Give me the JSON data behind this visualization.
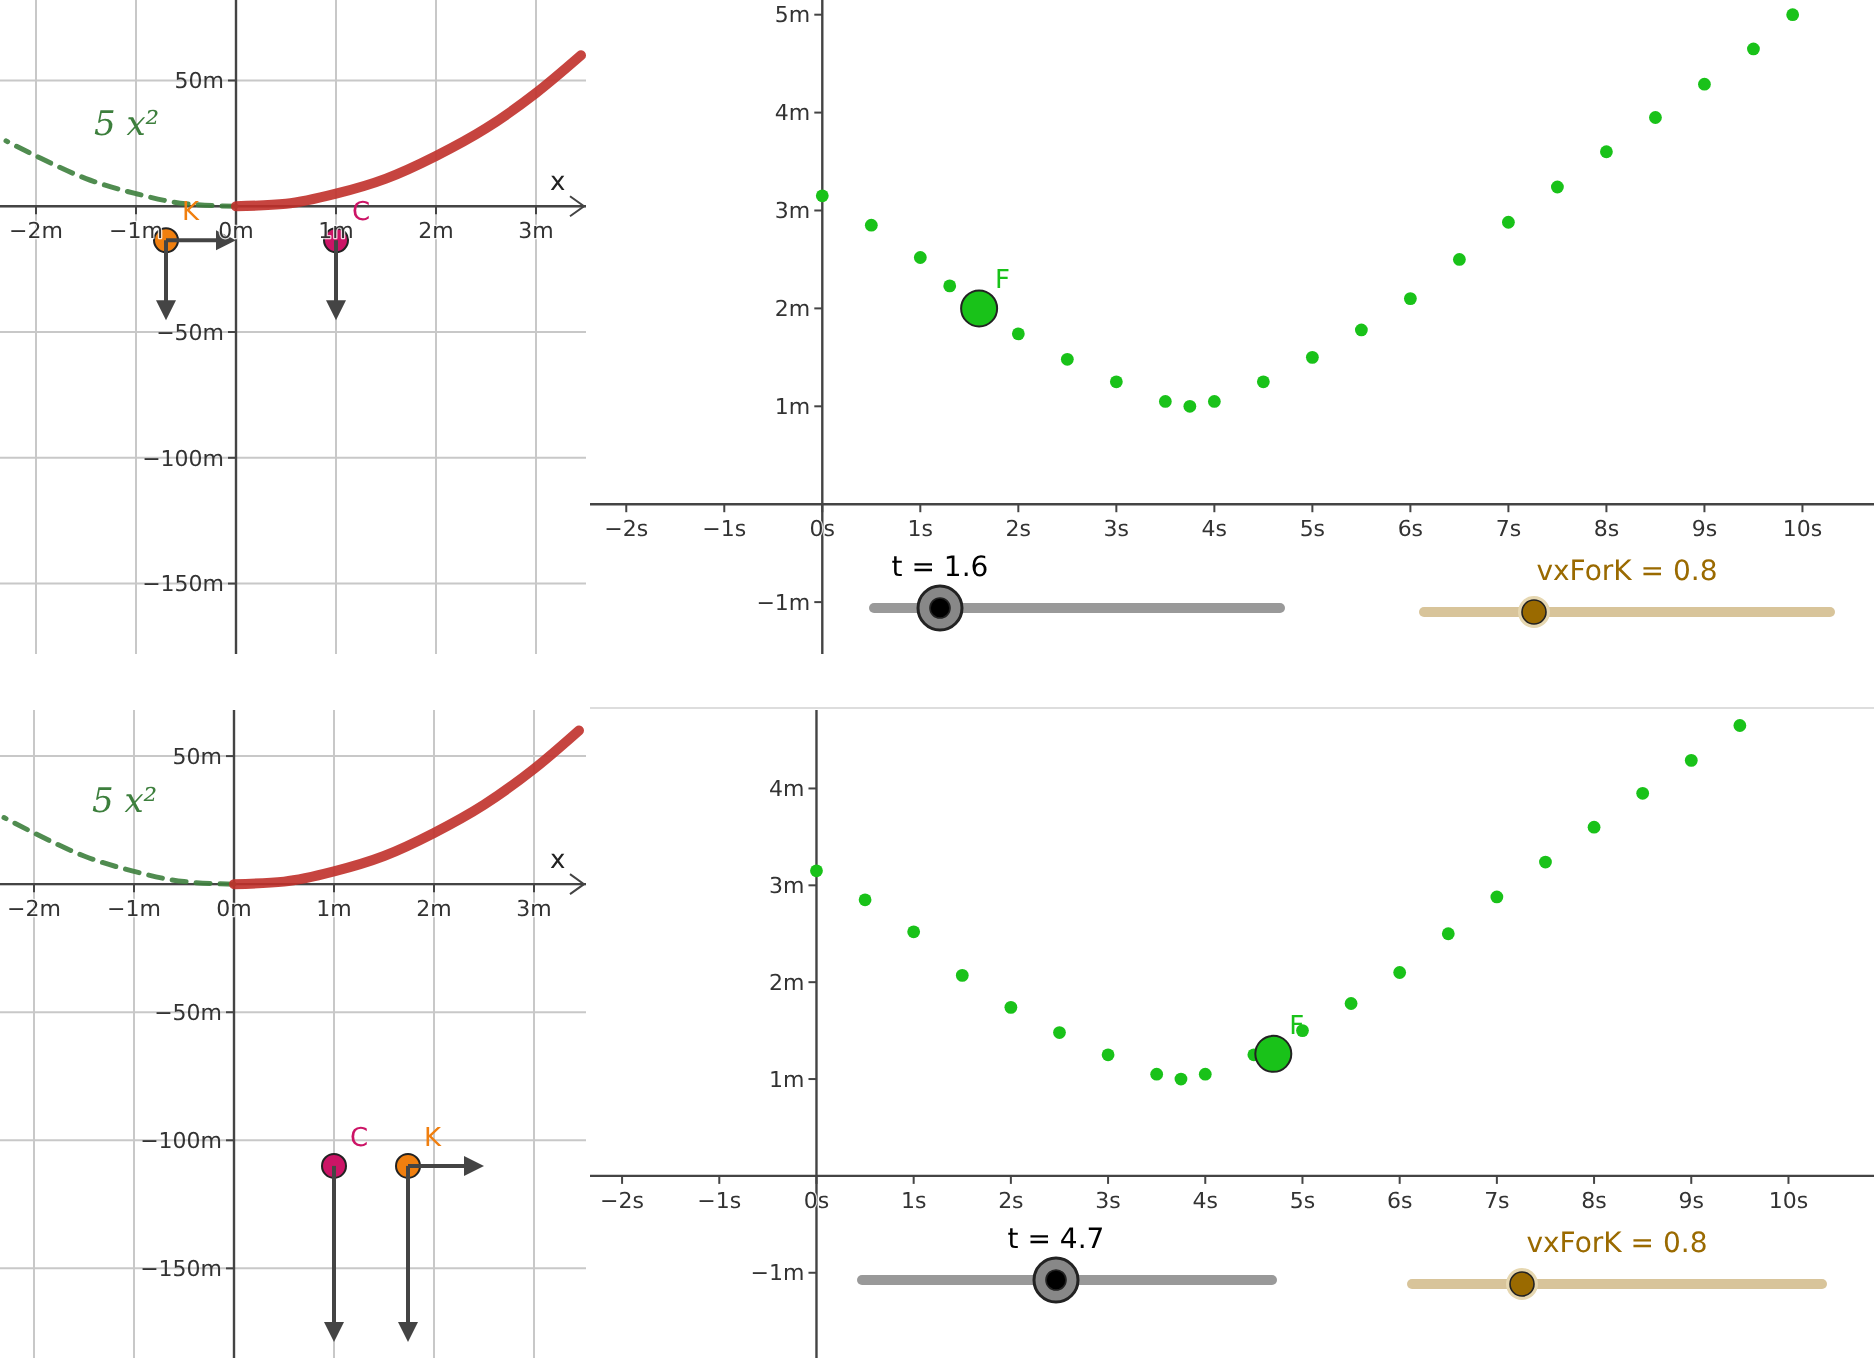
{
  "chart_data": [
    {
      "type": "line",
      "xlabel": "x",
      "xlim": [
        -2.36,
        3.5
      ],
      "ylim": [
        -178,
        82
      ],
      "grid": true,
      "xticks": [
        {
          "value": -2,
          "label": "−2m"
        },
        {
          "value": -1,
          "label": "−1m"
        },
        {
          "value": 0,
          "label": "0m"
        },
        {
          "value": 1,
          "label": "1m"
        },
        {
          "value": 2,
          "label": "2m"
        },
        {
          "value": 3,
          "label": "3m"
        }
      ],
      "yticks": [
        {
          "value": 50,
          "label": "50m"
        },
        {
          "value": -50,
          "label": "−50m"
        },
        {
          "value": -100,
          "label": "−100m"
        },
        {
          "value": -150,
          "label": "−150m"
        }
      ],
      "series": [
        {
          "name": "5 x²",
          "color": "#3d7f3d",
          "line_style": "dashed",
          "x": [
            -2.3,
            -2,
            -1.5,
            -1,
            -0.5,
            0
          ],
          "values": [
            26,
            20,
            11,
            5,
            1,
            0
          ]
        },
        {
          "color": "#c0302a",
          "line_style": "solid",
          "x": [
            0,
            0.5,
            1,
            1.5,
            2,
            2.5,
            3,
            3.45
          ],
          "values": [
            0,
            1,
            5,
            11,
            20,
            31,
            45,
            60
          ]
        },
        {
          "type": "scatter",
          "name": "K",
          "color": "#f07f0f",
          "marker": "circle",
          "x": [
            -0.7
          ],
          "values": [
            -13.5
          ]
        },
        {
          "type": "scatter",
          "name": "C",
          "color": "#cc1466",
          "marker": "circle",
          "x": [
            1
          ],
          "values": [
            -13.5
          ]
        }
      ]
    },
    {
      "type": "scatter",
      "xlim": [
        -2.37,
        10.73
      ],
      "ylim": [
        -1.53,
        5.15
      ],
      "grid": false,
      "xticks": [
        {
          "value": -2,
          "label": "−2s"
        },
        {
          "value": -1,
          "label": "−1s"
        },
        {
          "value": 0,
          "label": "0s"
        },
        {
          "value": 1,
          "label": "1s"
        },
        {
          "value": 2,
          "label": "2s"
        },
        {
          "value": 3,
          "label": "3s"
        },
        {
          "value": 4,
          "label": "4s"
        },
        {
          "value": 5,
          "label": "5s"
        },
        {
          "value": 6,
          "label": "6s"
        },
        {
          "value": 7,
          "label": "7s"
        },
        {
          "value": 8,
          "label": "8s"
        },
        {
          "value": 9,
          "label": "9s"
        },
        {
          "value": 10,
          "label": "10s"
        }
      ],
      "yticks": [
        {
          "value": -1,
          "label": "−1m"
        },
        {
          "value": 1,
          "label": "1m"
        },
        {
          "value": 2,
          "label": "2m"
        },
        {
          "value": 3,
          "label": "3m"
        },
        {
          "value": 4,
          "label": "4m"
        },
        {
          "value": 5,
          "label": "5m"
        }
      ],
      "annotations": [
        "t = 1.6",
        "vxForK = 0.8"
      ],
      "series": [
        {
          "color": "#19c219",
          "marker": "circle",
          "x": [
            0,
            0.5,
            1,
            1.3,
            2,
            2.5,
            3,
            3.5,
            3.75,
            4,
            4.5,
            5,
            5.5,
            6,
            6.5,
            7,
            7.5,
            8,
            8.5,
            9,
            9.5,
            9.9
          ],
          "values": [
            3.15,
            2.85,
            2.52,
            2.23,
            1.74,
            1.48,
            1.25,
            1.05,
            1,
            1.05,
            1.25,
            1.5,
            1.78,
            2.1,
            2.5,
            2.88,
            3.24,
            3.6,
            3.95,
            4.29,
            4.65,
            5
          ]
        },
        {
          "name": "F",
          "color": "#19c219",
          "marker": "circle",
          "x": [
            1.6
          ],
          "values": [
            2
          ]
        }
      ]
    },
    {
      "type": "line",
      "xlabel": "x",
      "xlim": [
        -2.34,
        3.52
      ],
      "ylim": [
        -185,
        68
      ],
      "grid": true,
      "xticks": [
        {
          "value": -2,
          "label": "−2m"
        },
        {
          "value": -1,
          "label": "−1m"
        },
        {
          "value": 0,
          "label": "0m"
        },
        {
          "value": 1,
          "label": "1m"
        },
        {
          "value": 2,
          "label": "2m"
        },
        {
          "value": 3,
          "label": "3m"
        }
      ],
      "yticks": [
        {
          "value": 50,
          "label": "50m"
        },
        {
          "value": -50,
          "label": "−50m"
        },
        {
          "value": -100,
          "label": "−100m"
        },
        {
          "value": -150,
          "label": "−150m"
        }
      ],
      "series": [
        {
          "name": "5 x²",
          "color": "#3d7f3d",
          "line_style": "dashed",
          "x": [
            -2.3,
            -2,
            -1.5,
            -1,
            -0.5,
            0
          ],
          "values": [
            26,
            20,
            11,
            5,
            1,
            0
          ]
        },
        {
          "color": "#c0302a",
          "line_style": "solid",
          "x": [
            0,
            0.5,
            1,
            1.5,
            2,
            2.5,
            3,
            3.45
          ],
          "values": [
            0,
            1,
            5,
            11,
            20,
            31,
            45,
            60
          ]
        },
        {
          "type": "scatter",
          "name": "K",
          "color": "#f07f0f",
          "marker": "circle",
          "x": [
            1.74
          ],
          "values": [
            -110
          ]
        },
        {
          "type": "scatter",
          "name": "C",
          "color": "#cc1466",
          "marker": "circle",
          "x": [
            1
          ],
          "values": [
            -110
          ]
        }
      ]
    },
    {
      "type": "scatter",
      "xlim": [
        -2.33,
        10.88
      ],
      "ylim": [
        -1.88,
        4.81
      ],
      "grid": false,
      "xticks": [
        {
          "value": -2,
          "label": "−2s"
        },
        {
          "value": -1,
          "label": "−1s"
        },
        {
          "value": 0,
          "label": "0s"
        },
        {
          "value": 1,
          "label": "1s"
        },
        {
          "value": 2,
          "label": "2s"
        },
        {
          "value": 3,
          "label": "3s"
        },
        {
          "value": 4,
          "label": "4s"
        },
        {
          "value": 5,
          "label": "5s"
        },
        {
          "value": 6,
          "label": "6s"
        },
        {
          "value": 7,
          "label": "7s"
        },
        {
          "value": 8,
          "label": "8s"
        },
        {
          "value": 9,
          "label": "9s"
        },
        {
          "value": 10,
          "label": "10s"
        }
      ],
      "yticks": [
        {
          "value": -1,
          "label": "−1m"
        },
        {
          "value": 1,
          "label": "1m"
        },
        {
          "value": 2,
          "label": "2m"
        },
        {
          "value": 3,
          "label": "3m"
        },
        {
          "value": 4,
          "label": "4m"
        }
      ],
      "annotations": [
        "t = 4.7",
        "vxForK = 0.8"
      ],
      "series": [
        {
          "color": "#19c219",
          "marker": "circle",
          "x": [
            0,
            0.5,
            1,
            1.5,
            2,
            2.5,
            3,
            3.5,
            3.75,
            4,
            4.5,
            5,
            5.5,
            6,
            6.5,
            7,
            7.5,
            8,
            8.5,
            9,
            9.5
          ],
          "values": [
            3.15,
            2.85,
            2.52,
            2.07,
            1.74,
            1.48,
            1.25,
            1.05,
            1,
            1.05,
            1.25,
            1.5,
            1.78,
            2.1,
            2.5,
            2.88,
            3.24,
            3.6,
            3.95,
            4.29,
            4.65
          ]
        },
        {
          "name": "F",
          "color": "#19c219",
          "marker": "circle",
          "x": [
            4.7
          ],
          "values": [
            1.26
          ]
        }
      ]
    }
  ]
}
